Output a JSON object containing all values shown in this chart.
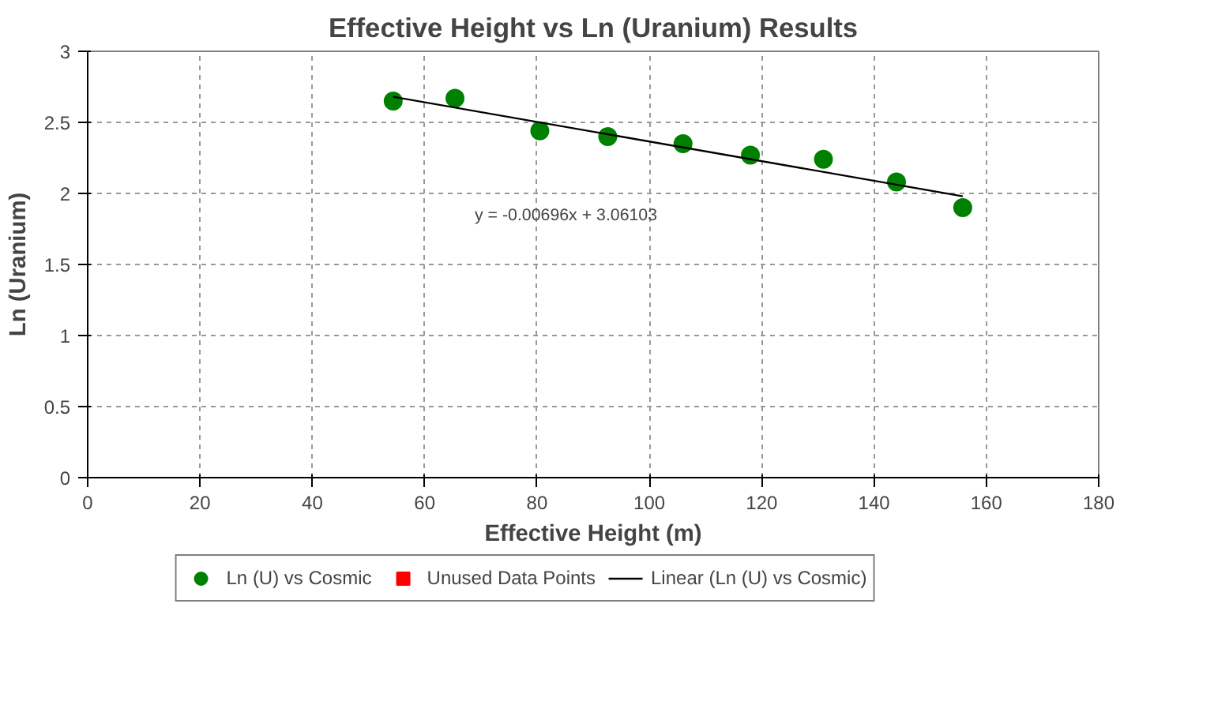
{
  "chart_data": {
    "type": "scatter",
    "title": "Effective Height vs Ln (Uranium) Results",
    "xlabel": "Effective Height (m)",
    "ylabel": "Ln (Uranium)",
    "xlim": [
      0,
      180
    ],
    "xticks": [
      0,
      20,
      40,
      60,
      80,
      100,
      120,
      140,
      160,
      180
    ],
    "ylim": [
      0,
      3
    ],
    "yticks": [
      0,
      0.5,
      1,
      1.5,
      2,
      2.5,
      3
    ],
    "grid": true,
    "legend": "bottom",
    "annotations": [
      "y = -0.00696x + 3.06103"
    ],
    "series": [
      {
        "name": "Ln (U) vs Cosmic",
        "marker": "circle",
        "color": "#008000",
        "x": [
          54.4,
          65.4,
          80.5,
          92.6,
          106,
          118,
          131,
          144,
          155.8
        ],
        "values": [
          2.65,
          2.67,
          2.44,
          2.4,
          2.35,
          2.27,
          2.24,
          2.08,
          1.9
        ]
      },
      {
        "name": "Unused Data Points",
        "type": "scatter",
        "marker": "square",
        "color": "#ff0000"
      },
      {
        "name": "Linear (Ln (U) vs Cosmic)",
        "type": "line",
        "line_style": "solid",
        "color": "#000000",
        "x": [
          54.4,
          155.8
        ],
        "values": [
          2.68,
          1.98
        ]
      }
    ]
  }
}
